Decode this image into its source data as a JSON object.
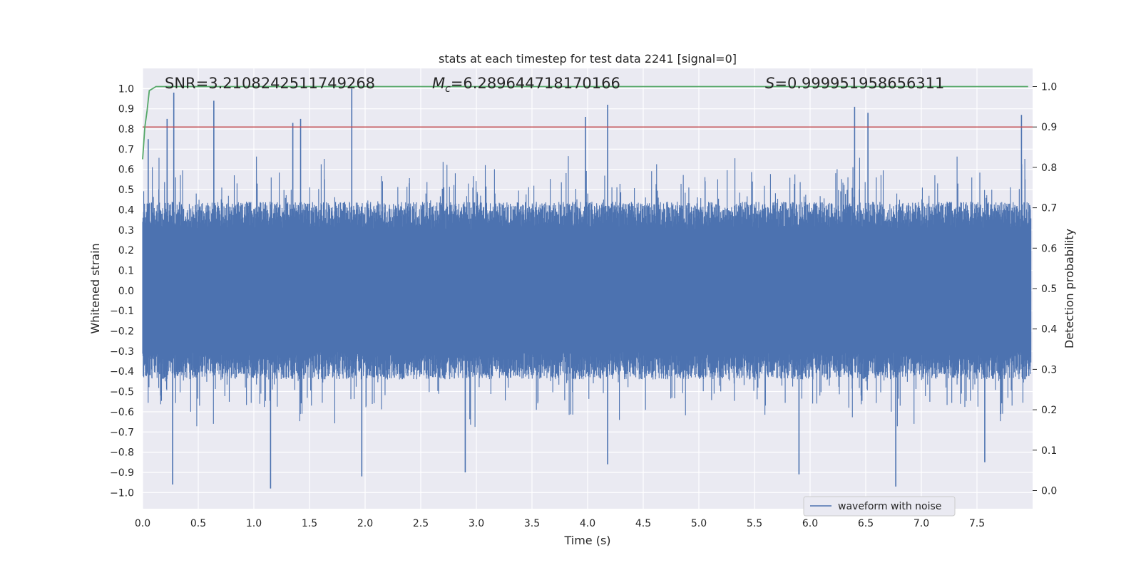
{
  "chart_data": {
    "type": "line",
    "title": "stats at each timestep for test data 2241 [signal=0]",
    "xlabel": "Time (s)",
    "ylabel_left": "Whitened strain",
    "ylabel_right": "Detection probability",
    "xlim": [
      0.0,
      8.0
    ],
    "ylim_left": [
      -1.08,
      1.1
    ],
    "ylim_right": [
      -0.045,
      1.045
    ],
    "x_ticks": [
      "0.0",
      "0.5",
      "1.0",
      "1.5",
      "2.0",
      "2.5",
      "3.0",
      "3.5",
      "4.0",
      "4.5",
      "5.0",
      "5.5",
      "6.0",
      "6.5",
      "7.0",
      "7.5"
    ],
    "y_ticks_left": [
      "1.0",
      "0.9",
      "0.8",
      "0.7",
      "0.6",
      "0.5",
      "0.4",
      "0.3",
      "0.2",
      "0.1",
      "0.0",
      "−0.1",
      "−0.2",
      "−0.3",
      "−0.4",
      "−0.5",
      "−0.6",
      "−0.7",
      "−0.8",
      "−0.9",
      "−1.0"
    ],
    "y_ticks_right": [
      "1.0",
      "0.9",
      "0.8",
      "0.7",
      "0.6",
      "0.5",
      "0.4",
      "0.3",
      "0.2",
      "0.1",
      "0.0"
    ],
    "annotations": {
      "snr": "SNR=3.2108242511749268",
      "mc_symbol": "M",
      "mc_sub": "c",
      "mc_value": "=6.289644718170166",
      "s_symbol": "S",
      "s_value": "=0.999951958656311"
    },
    "threshold": {
      "name": "threshold",
      "value": 0.9,
      "axis": "right",
      "color": "#c44e52"
    },
    "series": [
      {
        "name": "waveform with noise",
        "axis": "left",
        "color": "#4c72b0",
        "kind": "dense noise waveform",
        "typical_range": [
          -0.4,
          0.4
        ],
        "peaks_positive": [
          {
            "x": 0.05,
            "y": 0.75
          },
          {
            "x": 0.22,
            "y": 0.85
          },
          {
            "x": 0.28,
            "y": 0.98
          },
          {
            "x": 0.64,
            "y": 0.94
          },
          {
            "x": 1.35,
            "y": 0.83
          },
          {
            "x": 1.42,
            "y": 0.85
          },
          {
            "x": 1.88,
            "y": 1.0
          },
          {
            "x": 3.98,
            "y": 0.86
          },
          {
            "x": 4.18,
            "y": 0.92
          },
          {
            "x": 6.4,
            "y": 0.91
          },
          {
            "x": 6.52,
            "y": 0.88
          },
          {
            "x": 7.9,
            "y": 0.87
          }
        ],
        "peaks_negative": [
          {
            "x": 0.27,
            "y": -0.96
          },
          {
            "x": 1.15,
            "y": -0.98
          },
          {
            "x": 1.97,
            "y": -0.92
          },
          {
            "x": 2.9,
            "y": -0.9
          },
          {
            "x": 4.18,
            "y": -0.86
          },
          {
            "x": 5.9,
            "y": -0.91
          },
          {
            "x": 6.77,
            "y": -0.97
          },
          {
            "x": 7.57,
            "y": -0.85
          }
        ]
      },
      {
        "name": "detection probability",
        "axis": "right",
        "color": "#55a868",
        "x": [
          0.0,
          0.02,
          0.04,
          0.06,
          0.09,
          0.12,
          0.2,
          1.0,
          2.0,
          3.0,
          4.0,
          5.0,
          6.0,
          7.0,
          7.96
        ],
        "y": [
          0.82,
          0.9,
          0.94,
          0.99,
          0.995,
          1.0,
          1.0,
          1.0,
          1.0,
          1.0,
          1.0,
          1.0,
          1.0,
          1.0,
          1.0
        ]
      }
    ],
    "legend": {
      "position": "lower-right",
      "entries": [
        "waveform with noise"
      ]
    },
    "colors": {
      "background": "#eaeaf2",
      "grid": "#ffffff",
      "strain": "#4c72b0",
      "probability": "#55a868",
      "threshold": "#c44e52"
    }
  }
}
